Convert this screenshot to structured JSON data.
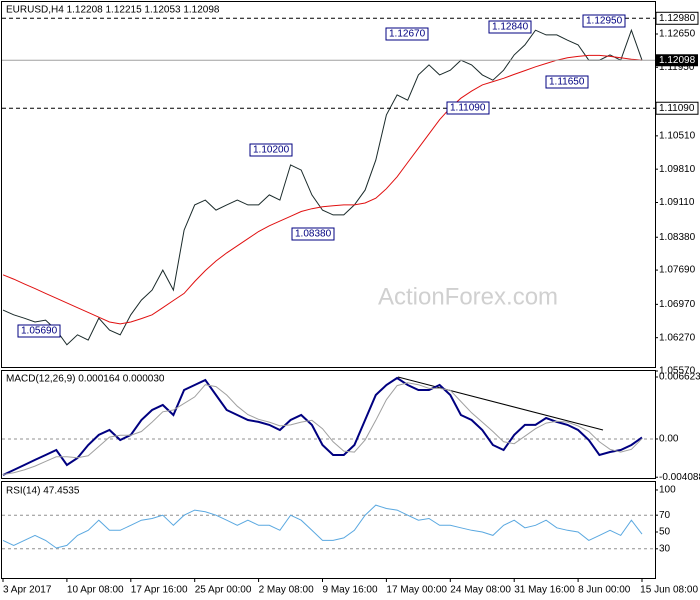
{
  "chart_data": [
    {
      "type": "line",
      "title": "EURUSD,H4  1.12208 1.12215 1.12053 1.12098",
      "watermark": "ActionForex.com",
      "ylim": [
        1.05654,
        1.13322
      ],
      "yticks": [
        {
          "value": 1.1265,
          "label": "1.12650"
        },
        {
          "value": 1.1195,
          "label": "1.11950"
        },
        {
          "value": 1.1051,
          "label": "1.10510"
        },
        {
          "value": 1.0981,
          "label": "1.09810"
        },
        {
          "value": 1.0911,
          "label": "1.09110"
        },
        {
          "value": 1.0838,
          "label": "1.08380"
        },
        {
          "value": 1.0769,
          "label": "1.07690"
        },
        {
          "value": 1.0697,
          "label": "1.06970"
        },
        {
          "value": 1.0627,
          "label": "1.06270"
        },
        {
          "value": 1.0557,
          "label": "1.05570"
        }
      ],
      "levels": [
        {
          "value": 1.1298,
          "label": "1.12980"
        },
        {
          "value": 1.1109,
          "label": "1.11090"
        }
      ],
      "last_price": {
        "value": 1.12098,
        "label": "1.12098"
      },
      "annotations": [
        "1.05690",
        "1.10200",
        "1.08380",
        "1.12670",
        "1.11090",
        "1.12840",
        "1.11650",
        "1.12950"
      ],
      "series": [
        {
          "color": "#1a2a2a",
          "values": [
            1.0685,
            1.0675,
            1.0668,
            1.066,
            1.0664,
            1.0643,
            1.0612,
            1.0633,
            1.0622,
            1.0668,
            1.0643,
            1.0633,
            1.0675,
            1.0706,
            1.0727,
            1.0769,
            1.0727,
            1.0853,
            1.0906,
            1.0916,
            1.0895,
            1.0906,
            1.0916,
            1.0906,
            1.0906,
            1.0927,
            1.0916,
            1.099,
            1.0979,
            1.0927,
            1.0895,
            1.0885,
            1.0885,
            1.0906,
            1.0937,
            1.1,
            1.1095,
            1.1137,
            1.1126,
            1.1179,
            1.12,
            1.1179,
            1.1189,
            1.121,
            1.12,
            1.1179,
            1.1168,
            1.1189,
            1.1221,
            1.1242,
            1.1273,
            1.1263,
            1.1263,
            1.1252,
            1.1242,
            1.121,
            1.121,
            1.1221,
            1.121,
            1.1273,
            1.121
          ]
        },
        {
          "color": "#e01010",
          "values": [
            1.0759,
            1.075,
            1.074,
            1.073,
            1.072,
            1.071,
            1.07,
            1.069,
            1.068,
            1.067,
            1.066,
            1.0656,
            1.066,
            1.0667,
            1.0675,
            1.069,
            1.0705,
            1.072,
            1.0745,
            1.0768,
            1.0788,
            1.0805,
            1.082,
            1.0835,
            1.085,
            1.0862,
            1.0872,
            1.0882,
            1.0892,
            1.0898,
            1.0902,
            1.0904,
            1.0906,
            1.0906,
            1.091,
            1.092,
            1.094,
            1.0965,
            1.0995,
            1.1025,
            1.1055,
            1.1085,
            1.111,
            1.113,
            1.1145,
            1.1158,
            1.1165,
            1.1172,
            1.118,
            1.1188,
            1.1196,
            1.1203,
            1.121,
            1.1215,
            1.1218,
            1.122,
            1.122,
            1.1218,
            1.1215,
            1.1212,
            1.121
          ]
        }
      ]
    },
    {
      "type": "line",
      "title": "MACD(12,26,9) 0.000164 0.000030",
      "ylim": [
        -0.00417,
        0.00737
      ],
      "yticks": [
        0.006623,
        {
          "value": 0,
          "label": "0.00"
        },
        -0.004088
      ],
      "dashed_levels": [
        0
      ],
      "series": [
        {
          "color": "#000080",
          "values": [
            -0.00385,
            -0.00331,
            -0.00278,
            -0.00224,
            -0.00171,
            -0.00118,
            -0.00278,
            -0.00203,
            -0.00064,
            0.00043,
            0.00096,
            -0.00011,
            0.00043,
            0.00203,
            0.0031,
            0.00363,
            0.00256,
            0.00523,
            0.00577,
            0.0063,
            0.0047,
            0.0031,
            0.00256,
            0.00203,
            0.00182,
            0.0015,
            0.00096,
            0.00203,
            0.00256,
            0.0015,
            -0.00064,
            -0.00171,
            -0.00171,
            -0.00064,
            0.00203,
            0.0047,
            0.00577,
            0.00652,
            0.00577,
            0.00523,
            0.00523,
            0.00577,
            0.0047,
            0.00256,
            0.00203,
            0.00096,
            -0.00064,
            -0.00118,
            0.00043,
            0.0015,
            0.0015,
            0.00224,
            0.00182,
            0.0015,
            0.00096,
            -0.00011,
            -0.00171,
            -0.00139,
            -0.00118,
            -0.00064,
            0.00016
          ]
        },
        {
          "color": "#a0a0a0",
          "values": [
            -0.0038,
            -0.0036,
            -0.0033,
            -0.0029,
            -0.0024,
            -0.0019,
            -0.0019,
            -0.002,
            -0.0018,
            -0.0008,
            0.0002,
            0.0004,
            0.0004,
            0.0008,
            0.0018,
            0.0029,
            0.0031,
            0.0038,
            0.0045,
            0.0058,
            0.0056,
            0.0047,
            0.0035,
            0.0026,
            0.0021,
            0.0018,
            0.0014,
            0.0015,
            0.0018,
            0.002,
            0.0011,
            -0.0003,
            -0.0013,
            -0.0014,
            -0.0001,
            0.002,
            0.0042,
            0.0057,
            0.006,
            0.0058,
            0.0054,
            0.0054,
            0.0052,
            0.004,
            0.0028,
            0.0018,
            0.0008,
            -0.0003,
            -0.0005,
            0.0003,
            0.0011,
            0.0017,
            0.0019,
            0.0018,
            0.0014,
            0.0008,
            -0.0003,
            -0.0011,
            -0.0014,
            -0.0011,
            3e-05
          ]
        }
      ]
    },
    {
      "type": "line",
      "title": "RSI(14) 47.4535",
      "ylim": [
        -4.74,
        109.49
      ],
      "yticks": [
        100,
        70,
        50,
        30
      ],
      "dashed_levels": [
        70,
        30
      ],
      "categories": [
        "3 Apr 2017",
        null,
        null,
        null,
        null,
        null,
        "10 Apr 08:00",
        null,
        null,
        null,
        null,
        null,
        "17 Apr 16:00",
        null,
        null,
        null,
        null,
        null,
        "25 Apr 00:00",
        null,
        null,
        null,
        null,
        null,
        "2 May 08:00",
        null,
        null,
        null,
        null,
        null,
        "9 May 16:00",
        null,
        null,
        null,
        null,
        null,
        "17 May 00:00",
        null,
        null,
        null,
        null,
        null,
        "24 May 08:00",
        null,
        null,
        null,
        null,
        null,
        "31 May 16:00",
        null,
        null,
        null,
        null,
        null,
        "8 Jun 00:00",
        null,
        null,
        null,
        null,
        null,
        "15 Jun 08:00"
      ],
      "series": [
        {
          "color": "#5aa8e0",
          "values": [
            40,
            34,
            40,
            46,
            40,
            31,
            34,
            46,
            52,
            64,
            52,
            52,
            58,
            64,
            66,
            70,
            58,
            70,
            76,
            74,
            70,
            64,
            58,
            64,
            58,
            58,
            52,
            70,
            64,
            52,
            40,
            40,
            43,
            52,
            70,
            82,
            78,
            76,
            70,
            64,
            66,
            58,
            58,
            55,
            52,
            50,
            46,
            58,
            64,
            55,
            58,
            64,
            55,
            52,
            50,
            40,
            46,
            52,
            46,
            64,
            47.45
          ]
        }
      ]
    }
  ]
}
